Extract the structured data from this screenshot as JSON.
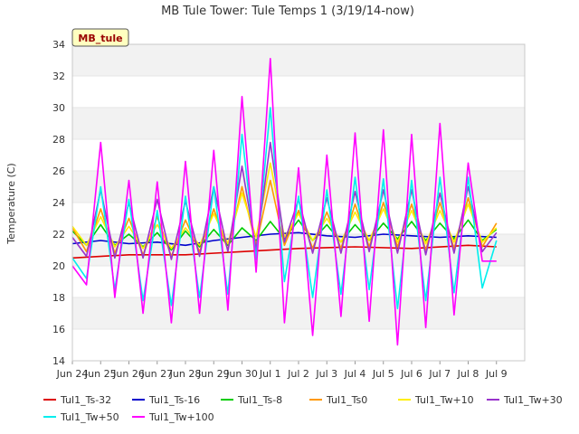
{
  "chart_data": {
    "type": "line",
    "title": "MB Tule Tower: Tule Temps 1 (3/19/14-now)",
    "xlabel": "",
    "ylabel": "Temperature (C)",
    "ylim": [
      14,
      34
    ],
    "yticks": [
      14,
      16,
      18,
      20,
      22,
      24,
      26,
      28,
      30,
      32,
      34
    ],
    "xlim": [
      "2014-06-23",
      "2014-07-09"
    ],
    "xticks": [
      {
        "x": "2014-06-23",
        "label": "Jun 24"
      },
      {
        "x": "2014-06-24",
        "label": "Jun 25"
      },
      {
        "x": "2014-06-25",
        "label": "Jun 26"
      },
      {
        "x": "2014-06-26",
        "label": "Jun 27"
      },
      {
        "x": "2014-06-27",
        "label": "Jun 28"
      },
      {
        "x": "2014-06-28",
        "label": "Jun 29"
      },
      {
        "x": "2014-06-29",
        "label": "Jun 30"
      },
      {
        "x": "2014-06-30",
        "label": "Jul 1"
      },
      {
        "x": "2014-07-01",
        "label": "Jul 2"
      },
      {
        "x": "2014-07-02",
        "label": "Jul 3"
      },
      {
        "x": "2014-07-03",
        "label": "Jul 4"
      },
      {
        "x": "2014-07-04",
        "label": "Jul 5"
      },
      {
        "x": "2014-07-05",
        "label": "Jul 6"
      },
      {
        "x": "2014-07-06",
        "label": "Jul 7"
      },
      {
        "x": "2014-07-07",
        "label": "Jul 8"
      },
      {
        "x": "2014-07-08",
        "label": "Jul 9"
      }
    ],
    "grid": "horizontal bands",
    "legend_position": "bottom",
    "station_badge": "MB_tule",
    "series": [
      {
        "name": "Tul1_Ts-32",
        "color": "#dd0000",
        "x": [
          "2014-06-23",
          "2014-06-25",
          "2014-06-27",
          "2014-06-29",
          "2014-07-01",
          "2014-07-03",
          "2014-07-05",
          "2014-07-07",
          "2014-07-08"
        ],
        "values": [
          20.5,
          20.7,
          20.7,
          20.9,
          21.1,
          21.2,
          21.1,
          21.3,
          21.2
        ]
      },
      {
        "name": "Tul1_Ts-16",
        "color": "#0000cc",
        "x": [
          "2014-06-23",
          "2014-06-24",
          "2014-06-25",
          "2014-06-26",
          "2014-06-27",
          "2014-06-28",
          "2014-06-29",
          "2014-06-30",
          "2014-07-01",
          "2014-07-02",
          "2014-07-03",
          "2014-07-04",
          "2014-07-05",
          "2014-07-06",
          "2014-07-07",
          "2014-07-08"
        ],
        "values": [
          21.4,
          21.6,
          21.4,
          21.5,
          21.3,
          21.6,
          21.8,
          22.0,
          22.1,
          21.9,
          21.8,
          22.0,
          21.9,
          21.8,
          21.9,
          21.8
        ]
      },
      {
        "name": "Tul1_Ts-8",
        "color": "#00cc00",
        "x": [
          "2014-06-23",
          "2014-06-23.5",
          "2014-06-24",
          "2014-06-24.5",
          "2014-06-25",
          "2014-06-25.5",
          "2014-06-26",
          "2014-06-26.5",
          "2014-06-27",
          "2014-06-27.5",
          "2014-06-28",
          "2014-06-28.5",
          "2014-06-29",
          "2014-06-29.5",
          "2014-06-30",
          "2014-06-30.5",
          "2014-07-01",
          "2014-07-01.5",
          "2014-07-02",
          "2014-07-02.5",
          "2014-07-03",
          "2014-07-03.5",
          "2014-07-04",
          "2014-07-04.5",
          "2014-07-05",
          "2014-07-05.5",
          "2014-07-06",
          "2014-07-06.5",
          "2014-07-07",
          "2014-07-07.5",
          "2014-07-08"
        ],
        "values": [
          22.2,
          21.3,
          22.6,
          21.3,
          22.0,
          21.2,
          22.1,
          21.0,
          22.2,
          21.2,
          22.3,
          21.3,
          22.4,
          21.6,
          22.8,
          21.7,
          22.9,
          21.6,
          22.6,
          21.5,
          22.6,
          21.6,
          22.7,
          21.7,
          22.8,
          21.6,
          22.7,
          21.7,
          22.9,
          21.6,
          22.3
        ]
      },
      {
        "name": "Tul1_Ts0",
        "color": "#ff9900",
        "x": [
          "2014-06-23",
          "2014-06-23.5",
          "2014-06-24",
          "2014-06-24.5",
          "2014-06-25",
          "2014-06-25.5",
          "2014-06-26",
          "2014-06-26.5",
          "2014-06-27",
          "2014-06-27.5",
          "2014-06-28",
          "2014-06-28.5",
          "2014-06-29",
          "2014-06-29.5",
          "2014-06-30",
          "2014-06-30.5",
          "2014-07-01",
          "2014-07-01.5",
          "2014-07-02",
          "2014-07-02.5",
          "2014-07-03",
          "2014-07-03.5",
          "2014-07-04",
          "2014-07-04.5",
          "2014-07-05",
          "2014-07-05.5",
          "2014-07-06",
          "2014-07-06.5",
          "2014-07-07",
          "2014-07-07.5",
          "2014-07-08"
        ],
        "values": [
          22.4,
          20.9,
          23.6,
          20.8,
          23.0,
          20.7,
          23.1,
          20.6,
          22.9,
          20.9,
          23.6,
          21.0,
          25.0,
          21.3,
          25.4,
          21.3,
          23.5,
          21.1,
          23.4,
          21.1,
          23.9,
          21.2,
          24.0,
          21.2,
          23.9,
          21.0,
          24.0,
          21.1,
          24.3,
          21.2,
          22.7
        ]
      },
      {
        "name": "Tul1_Tw+10",
        "color": "#ffee00",
        "x": [
          "2014-06-23",
          "2014-06-23.5",
          "2014-06-24",
          "2014-06-24.5",
          "2014-06-25",
          "2014-06-25.5",
          "2014-06-26",
          "2014-06-26.5",
          "2014-06-27",
          "2014-06-27.5",
          "2014-06-28",
          "2014-06-28.5",
          "2014-06-29",
          "2014-06-29.5",
          "2014-06-30",
          "2014-06-30.5",
          "2014-07-01",
          "2014-07-01.5",
          "2014-07-02",
          "2014-07-02.5",
          "2014-07-03",
          "2014-07-03.5",
          "2014-07-04",
          "2014-07-04.5",
          "2014-07-05",
          "2014-07-05.5",
          "2014-07-06",
          "2014-07-06.5",
          "2014-07-07",
          "2014-07-07.5",
          "2014-07-08"
        ],
        "values": [
          22.5,
          21.3,
          23.1,
          21.2,
          22.5,
          21.1,
          22.6,
          21.1,
          22.4,
          21.3,
          23.3,
          21.4,
          24.6,
          21.8,
          26.5,
          21.8,
          23.3,
          21.6,
          23.0,
          21.5,
          23.4,
          21.6,
          23.6,
          21.5,
          23.5,
          21.4,
          23.5,
          21.5,
          23.9,
          21.5,
          22.4
        ]
      },
      {
        "name": "Tul1_Tw+30",
        "color": "#9933cc",
        "x": [
          "2014-06-23",
          "2014-06-23.5",
          "2014-06-24",
          "2014-06-24.5",
          "2014-06-25",
          "2014-06-25.5",
          "2014-06-26",
          "2014-06-26.5",
          "2014-06-27",
          "2014-06-27.5",
          "2014-06-28",
          "2014-06-28.5",
          "2014-06-29",
          "2014-06-29.5",
          "2014-06-30",
          "2014-06-30.5",
          "2014-07-01",
          "2014-07-01.5",
          "2014-07-02",
          "2014-07-02.5",
          "2014-07-03",
          "2014-07-03.5",
          "2014-07-04",
          "2014-07-04.5",
          "2014-07-05",
          "2014-07-05.5",
          "2014-07-06",
          "2014-07-06.5",
          "2014-07-07",
          "2014-07-07.5",
          "2014-07-08"
        ],
        "values": [
          21.8,
          20.6,
          24.8,
          20.5,
          24.0,
          20.5,
          24.2,
          20.4,
          24.1,
          20.6,
          25.0,
          20.9,
          26.3,
          21.0,
          27.8,
          21.5,
          24.2,
          20.8,
          24.3,
          20.8,
          24.7,
          20.9,
          24.8,
          20.8,
          24.8,
          20.7,
          24.6,
          20.8,
          25.0,
          20.9,
          22.1
        ]
      },
      {
        "name": "Tul1_Tw+50",
        "color": "#00eeee",
        "x": [
          "2014-06-23",
          "2014-06-23.5",
          "2014-06-24",
          "2014-06-24.5",
          "2014-06-25",
          "2014-06-25.5",
          "2014-06-26",
          "2014-06-26.5",
          "2014-06-27",
          "2014-06-27.5",
          "2014-06-28",
          "2014-06-28.5",
          "2014-06-29",
          "2014-06-29.5",
          "2014-06-30",
          "2014-06-30.5",
          "2014-07-01",
          "2014-07-01.5",
          "2014-07-02",
          "2014-07-02.5",
          "2014-07-03",
          "2014-07-03.5",
          "2014-07-04",
          "2014-07-04.5",
          "2014-07-05",
          "2014-07-05.5",
          "2014-07-06",
          "2014-07-06.5",
          "2014-07-07",
          "2014-07-07.5",
          "2014-07-08"
        ],
        "values": [
          20.5,
          19.2,
          25.0,
          18.5,
          24.2,
          17.8,
          23.5,
          17.5,
          24.4,
          18.0,
          25.0,
          18.2,
          28.3,
          20.4,
          30.0,
          19.0,
          24.4,
          18.0,
          24.8,
          18.2,
          25.6,
          18.5,
          25.5,
          17.3,
          25.4,
          17.8,
          25.6,
          18.3,
          25.6,
          18.6,
          21.6
        ]
      },
      {
        "name": "Tul1_Tw+100",
        "color": "#ff00ff",
        "x": [
          "2014-06-23",
          "2014-06-23.5",
          "2014-06-24",
          "2014-06-24.5",
          "2014-06-25",
          "2014-06-25.5",
          "2014-06-26",
          "2014-06-26.5",
          "2014-06-27",
          "2014-06-27.5",
          "2014-06-28",
          "2014-06-28.5",
          "2014-06-29",
          "2014-06-29.5",
          "2014-06-30",
          "2014-06-30.5",
          "2014-07-01",
          "2014-07-01.5",
          "2014-07-02",
          "2014-07-02.5",
          "2014-07-03",
          "2014-07-03.5",
          "2014-07-04",
          "2014-07-04.5",
          "2014-07-05",
          "2014-07-05.5",
          "2014-07-06",
          "2014-07-06.5",
          "2014-07-07",
          "2014-07-07.5",
          "2014-07-08"
        ],
        "values": [
          20.0,
          18.8,
          27.8,
          18.0,
          25.4,
          17.0,
          25.3,
          16.4,
          26.6,
          17.0,
          27.3,
          17.2,
          30.7,
          19.6,
          33.1,
          16.4,
          26.2,
          15.6,
          27.0,
          16.8,
          28.4,
          16.5,
          28.6,
          15.0,
          28.3,
          16.1,
          29.0,
          16.9,
          26.5,
          20.3,
          20.3
        ]
      }
    ]
  }
}
